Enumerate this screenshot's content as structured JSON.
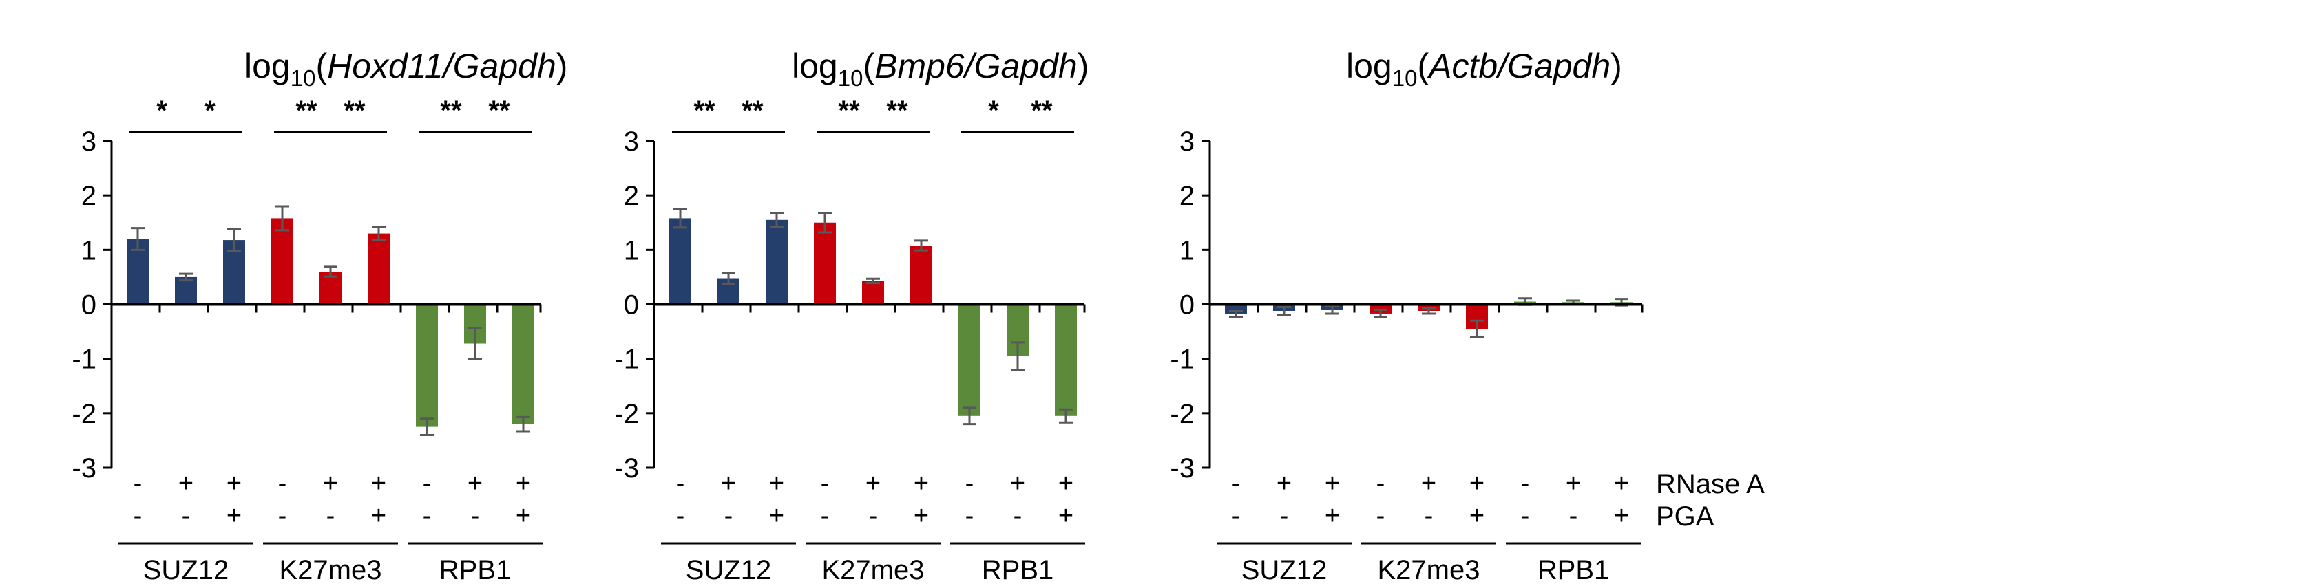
{
  "chart_data": [
    {
      "type": "bar",
      "title": {
        "prefix": "log",
        "sub": "10",
        "open": "(",
        "gene": "Hoxd11/Gapdh",
        "close": ")"
      },
      "ylim": [
        -3,
        3
      ],
      "yticks": [
        "3",
        "2",
        "1",
        "0",
        "-1",
        "-2",
        "-3"
      ],
      "grid": false,
      "rnase_signs": [
        "-",
        "+",
        "+",
        "-",
        "+",
        "+",
        "-",
        "+",
        "+"
      ],
      "pga_signs": [
        "-",
        "-",
        "+",
        "-",
        "-",
        "+",
        "-",
        "-",
        "+"
      ],
      "groups": [
        "SUZ12",
        "K27me3",
        "RPB1"
      ],
      "values": [
        1.2,
        0.5,
        1.18,
        1.58,
        0.6,
        1.3,
        -2.25,
        -0.72,
        -2.2
      ],
      "errors": [
        0.2,
        0.06,
        0.2,
        0.22,
        0.09,
        0.12,
        0.15,
        0.28,
        0.13
      ],
      "significance": [
        {
          "pair": [
            0,
            1
          ],
          "label": "*"
        },
        {
          "pair": [
            1,
            2
          ],
          "label": "*"
        },
        {
          "pair": [
            3,
            4
          ],
          "label": "**"
        },
        {
          "pair": [
            4,
            5
          ],
          "label": "**"
        },
        {
          "pair": [
            6,
            7
          ],
          "label": "**"
        },
        {
          "pair": [
            7,
            8
          ],
          "label": "**"
        }
      ]
    },
    {
      "type": "bar",
      "title": {
        "prefix": "log",
        "sub": "10",
        "open": "(",
        "gene": "Bmp6/Gapdh",
        "close": ")"
      },
      "ylim": [
        -3,
        3
      ],
      "yticks": [
        "3",
        "2",
        "1",
        "0",
        "-1",
        "-2",
        "-3"
      ],
      "grid": false,
      "rnase_signs": [
        "-",
        "+",
        "+",
        "-",
        "+",
        "+",
        "-",
        "+",
        "+"
      ],
      "pga_signs": [
        "-",
        "-",
        "+",
        "-",
        "-",
        "+",
        "-",
        "-",
        "+"
      ],
      "groups": [
        "SUZ12",
        "K27me3",
        "RPB1"
      ],
      "values": [
        1.58,
        0.48,
        1.55,
        1.5,
        0.43,
        1.08,
        -2.05,
        -0.95,
        -2.05
      ],
      "errors": [
        0.17,
        0.1,
        0.13,
        0.18,
        0.04,
        0.09,
        0.15,
        0.25,
        0.12
      ],
      "significance": [
        {
          "pair": [
            0,
            1
          ],
          "label": "**"
        },
        {
          "pair": [
            1,
            2
          ],
          "label": "**"
        },
        {
          "pair": [
            3,
            4
          ],
          "label": "**"
        },
        {
          "pair": [
            4,
            5
          ],
          "label": "**"
        },
        {
          "pair": [
            6,
            7
          ],
          "label": "*"
        },
        {
          "pair": [
            7,
            8
          ],
          "label": "**"
        }
      ]
    },
    {
      "type": "bar",
      "title": {
        "prefix": "log",
        "sub": "10",
        "open": "(",
        "gene": "Actb/Gapdh",
        "close": ")"
      },
      "ylim": [
        -3,
        3
      ],
      "yticks": [
        "3",
        "2",
        "1",
        "0",
        "-1",
        "-2",
        "-3"
      ],
      "grid": false,
      "rnase_signs": [
        "-",
        "+",
        "+",
        "-",
        "+",
        "+",
        "-",
        "+",
        "+"
      ],
      "pga_signs": [
        "-",
        "-",
        "+",
        "-",
        "-",
        "+",
        "-",
        "-",
        "+"
      ],
      "groups": [
        "SUZ12",
        "K27me3",
        "RPB1"
      ],
      "row_labels": [
        "RNase A",
        "PGA"
      ],
      "values": [
        -0.18,
        -0.12,
        -0.1,
        -0.17,
        -0.12,
        -0.45,
        0.05,
        0.04,
        0.04
      ],
      "errors": [
        0.06,
        0.07,
        0.07,
        0.07,
        0.05,
        0.15,
        0.06,
        0.03,
        0.06
      ],
      "significance": []
    }
  ],
  "colors": {
    "suz12": "#243f6b",
    "k27me3": "#c8000a",
    "rpb1": "#5a8a3a",
    "axis": "#000000",
    "errorbar": "#595959"
  }
}
